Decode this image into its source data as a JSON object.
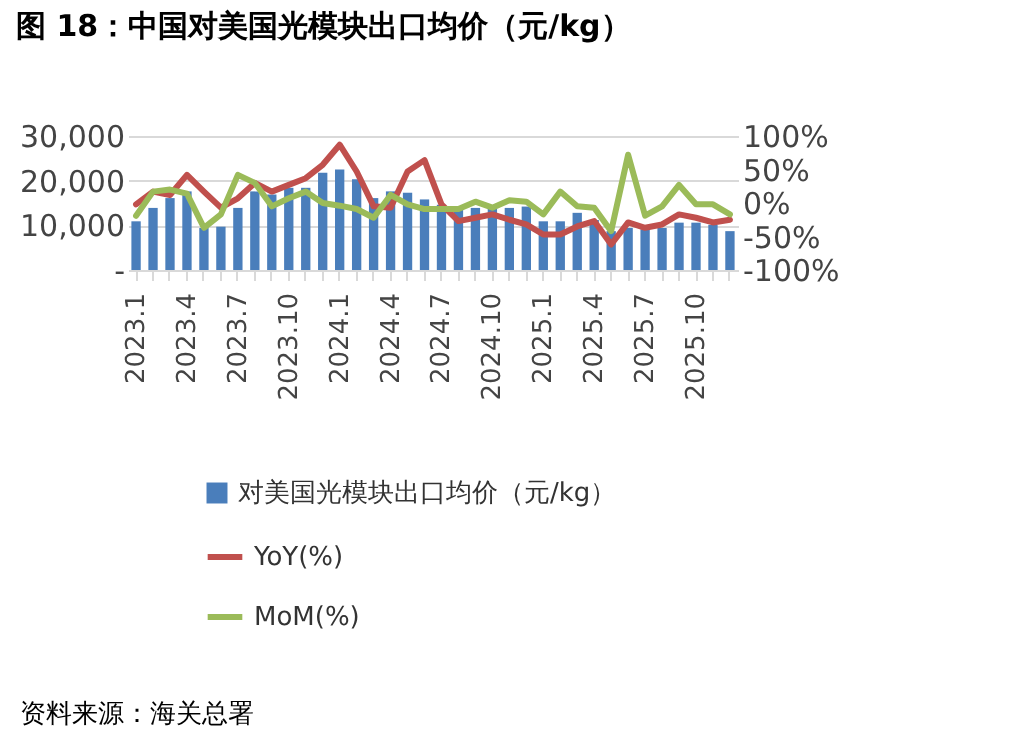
{
  "chart_data": {
    "type": "bar",
    "title": "图 18：中国对美国光模块出口均价（元/kg）",
    "categories": [
      "2023.1",
      null,
      null,
      "2023.4",
      null,
      null,
      "2023.7",
      null,
      null,
      "2023.10",
      null,
      null,
      "2024.1",
      null,
      null,
      "2024.4",
      null,
      null,
      "2024.7",
      null,
      null,
      "2024.10",
      null,
      null,
      "2025.1",
      null,
      null,
      "2025.4",
      null,
      null,
      "2025.7",
      null,
      null,
      "2025.10",
      null,
      null
    ],
    "series": [
      {
        "name": "对美国光模块出口均价（元/kg）",
        "color": "#4a7ebb",
        "values": [
          10900,
          13900,
          16100,
          17600,
          9400,
          9700,
          13900,
          17600,
          16900,
          18400,
          18400,
          21800,
          22500,
          20300,
          16100,
          17600,
          17300,
          15800,
          14600,
          13900,
          13900,
          13900,
          13900,
          14200,
          10900,
          10900,
          12800,
          11200,
          8700,
          9400,
          9100,
          9400,
          10600,
          10600,
          10100,
          8700
        ]
      },
      {
        "name": "YoY(%)",
        "type": "line",
        "axis": "y2",
        "color": "#c0504d",
        "values": [
          -2,
          17,
          12,
          42,
          17,
          -7,
          7,
          30,
          17,
          27,
          37,
          57,
          87,
          47,
          -5,
          -7,
          47,
          64,
          -2,
          -27,
          -22,
          -17,
          -25,
          -32,
          -47,
          -47,
          -35,
          -27,
          -62,
          -29,
          -37,
          -32,
          -17,
          -22,
          -29,
          -25
        ]
      },
      {
        "name": "MoM(%)",
        "type": "line",
        "axis": "y2",
        "color": "#9bbb59",
        "values": [
          -19,
          17,
          20,
          14,
          -37,
          -17,
          42,
          30,
          -5,
          7,
          17,
          0,
          -4,
          -9,
          -22,
          12,
          -2,
          -9,
          -9,
          -9,
          2,
          -7,
          4,
          2,
          -17,
          17,
          -5,
          -7,
          -42,
          72,
          -19,
          -5,
          27,
          -2,
          -2,
          -17
        ]
      }
    ],
    "ylim": [
      0,
      30000
    ],
    "yticks": [
      {
        "value": 0,
        "label": "-"
      },
      {
        "value": 10000,
        "label": "10,000"
      },
      {
        "value": 20000,
        "label": "20,000"
      },
      {
        "value": 30000,
        "label": "30,000"
      }
    ],
    "y2lim": [
      -100,
      100
    ],
    "y2ticks": [
      {
        "value": -100,
        "label": "-100%"
      },
      {
        "value": -50,
        "label": "-50%"
      },
      {
        "value": 0,
        "label": "0%"
      },
      {
        "value": 50,
        "label": "50%"
      },
      {
        "value": 100,
        "label": "100%"
      }
    ],
    "grid": "y",
    "legend": "bottom",
    "marker": "none",
    "line_style": "solid",
    "annotations": [
      "资料来源：海关总署"
    ]
  }
}
